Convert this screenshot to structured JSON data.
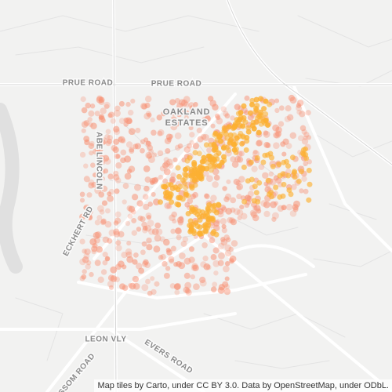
{
  "map": {
    "road_labels": [
      "PRUE ROAD",
      "PRUE ROAD",
      "ABE LINCOLN",
      "ECKHERT RD",
      "LEON VLY",
      "EVERS ROAD",
      "GRISSOM ROAD"
    ],
    "area_label": [
      "OAKLAND",
      "ESTATES"
    ],
    "attribution": "Map tiles by Carto, under CC BY 3.0. Data by OpenStreetMap, under ODbL."
  }
}
